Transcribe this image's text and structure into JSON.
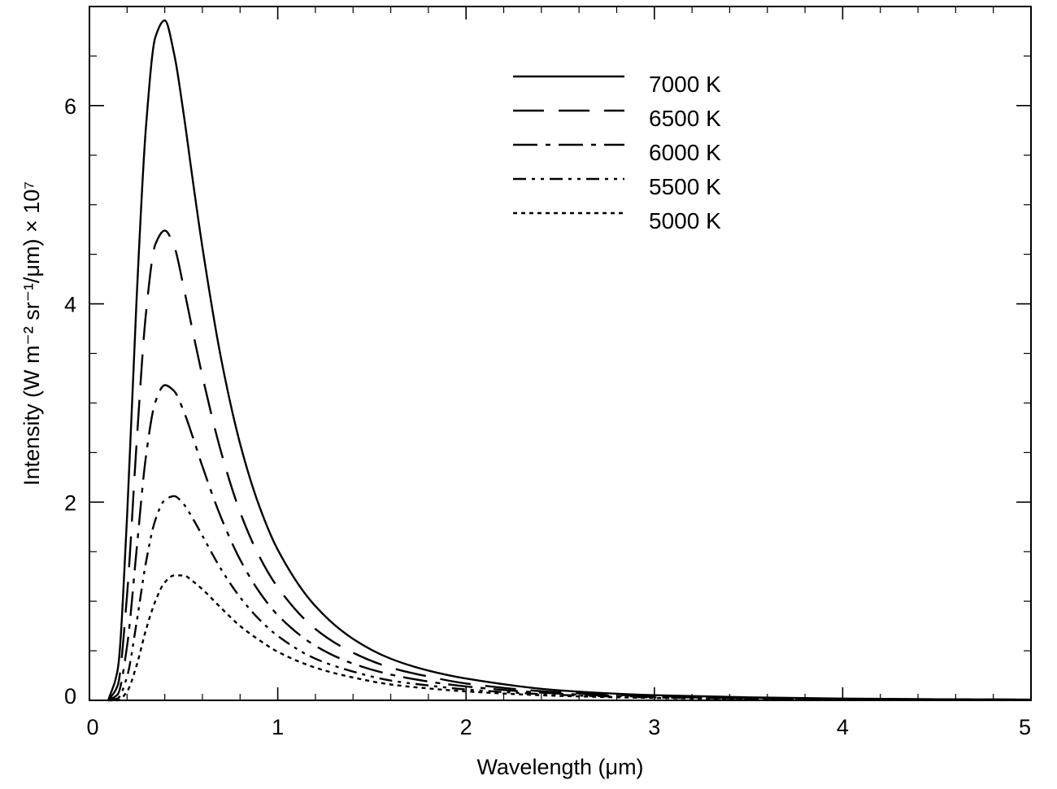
{
  "chart_data": {
    "type": "line",
    "xlabel": "Wavelength (μm)",
    "ylabel": "Intensity (W m⁻² sr⁻¹/μm)  × 10⁷",
    "xlim": [
      0,
      5
    ],
    "ylim": [
      0,
      7
    ],
    "x_ticks": [
      "0",
      "1",
      "2",
      "3",
      "4",
      "5"
    ],
    "y_ticks": [
      "0",
      "2",
      "4",
      "6"
    ],
    "grid": false,
    "legend_placement": "top-center",
    "x": [
      0.1,
      0.15,
      0.2,
      0.25,
      0.3,
      0.35,
      0.4,
      0.45,
      0.5,
      0.55,
      0.6,
      0.7,
      0.8,
      0.9,
      1.0,
      1.2,
      1.4,
      1.6,
      1.8,
      2.0,
      2.5,
      3.0,
      3.5,
      4.0,
      4.5,
      5.0
    ],
    "series": [
      {
        "name": "7000 K",
        "dash": "solid",
        "values": [
          0.0,
          0.31,
          1.86,
          4.03,
          5.78,
          6.69,
          6.86,
          6.52,
          5.92,
          5.23,
          4.57,
          3.44,
          2.59,
          1.97,
          1.52,
          0.95,
          0.62,
          0.42,
          0.3,
          0.22,
          0.1,
          0.052,
          0.03,
          0.018,
          0.011,
          0.008
        ]
      },
      {
        "name": "6500 K",
        "dash": "long-dash",
        "values": [
          0.0,
          0.15,
          1.07,
          2.58,
          3.9,
          4.6,
          4.74,
          4.58,
          4.17,
          3.71,
          3.27,
          2.5,
          1.9,
          1.46,
          1.14,
          0.72,
          0.48,
          0.33,
          0.24,
          0.17,
          0.08,
          0.043,
          0.025,
          0.015,
          0.01,
          0.007
        ]
      },
      {
        "name": "6000 K",
        "dash": "dash-dot",
        "values": [
          0.0,
          0.06,
          0.55,
          1.51,
          2.46,
          3.01,
          3.18,
          3.12,
          2.92,
          2.65,
          2.36,
          1.84,
          1.42,
          1.1,
          0.86,
          0.55,
          0.37,
          0.26,
          0.19,
          0.14,
          0.067,
          0.035,
          0.021,
          0.013,
          0.009,
          0.006
        ]
      },
      {
        "name": "5500 K",
        "dash": "dash-dot-dot",
        "values": [
          0.0,
          0.02,
          0.24,
          0.78,
          1.39,
          1.82,
          2.02,
          2.06,
          1.98,
          1.83,
          1.66,
          1.32,
          1.04,
          0.82,
          0.65,
          0.42,
          0.29,
          0.2,
          0.15,
          0.11,
          0.055,
          0.029,
          0.018,
          0.011,
          0.007,
          0.005
        ]
      },
      {
        "name": "5000 K",
        "dash": "dotted",
        "values": [
          0.0,
          0.0,
          0.09,
          0.35,
          0.71,
          1.0,
          1.19,
          1.26,
          1.26,
          1.2,
          1.12,
          0.93,
          0.75,
          0.61,
          0.49,
          0.33,
          0.23,
          0.16,
          0.12,
          0.09,
          0.045,
          0.024,
          0.015,
          0.009,
          0.006,
          0.004
        ]
      }
    ]
  }
}
